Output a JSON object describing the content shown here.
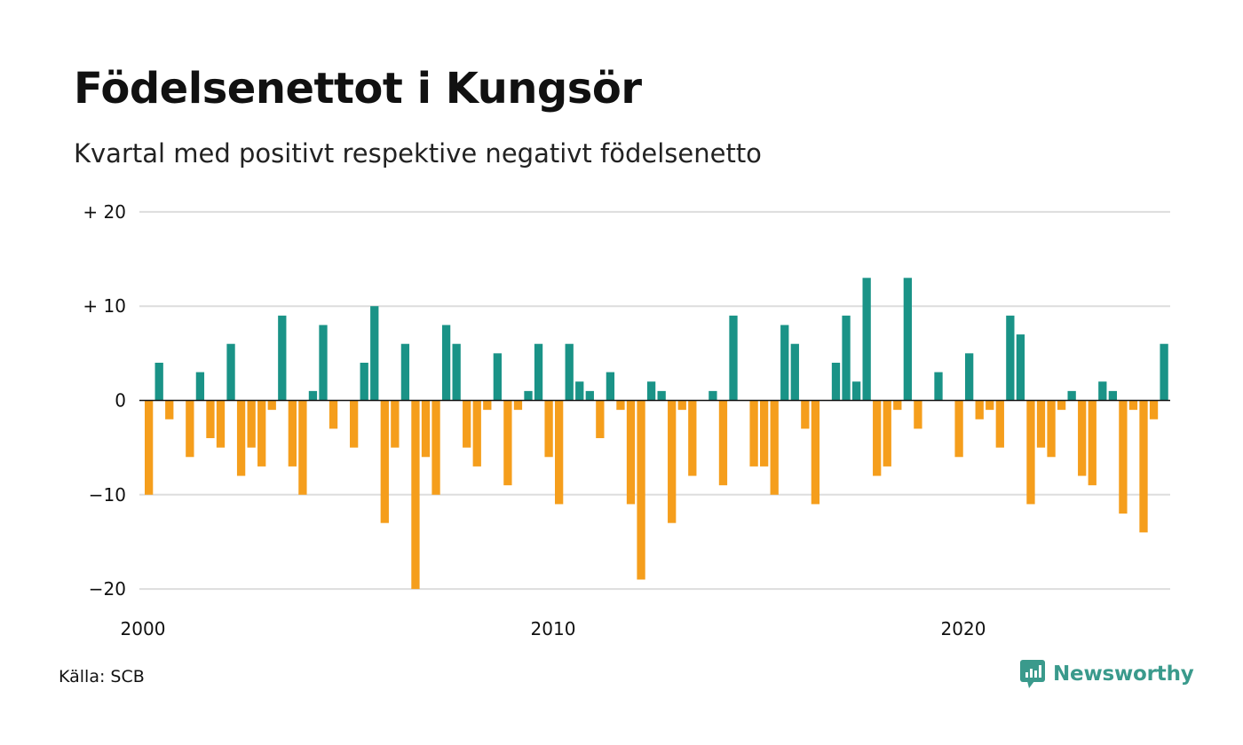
{
  "title": "Födelsenettot i Kungsör",
  "subtitle": "Kvartal med positivt respektive negativt födelsenetto",
  "source": "Källa: SCB",
  "brand": {
    "name": "Newsworthy",
    "icon": "bar-chart-speech-bubble-icon"
  },
  "colors": {
    "positive": "#1a9387",
    "negative": "#f59e1c",
    "grid": "#dddddd",
    "zero_line": "#111111"
  },
  "chart_data": {
    "type": "bar",
    "x_start": "2000 Q1",
    "x_step": "quarter",
    "ylim": [
      -20,
      20
    ],
    "ytick_values": [
      20,
      10,
      0,
      -10,
      -20
    ],
    "ytick_labels": [
      "+ 20",
      "+ 10",
      "0",
      "−10",
      "−20"
    ],
    "xtick_labels": [
      "2000",
      "2010",
      "2020"
    ],
    "xtick_years": [
      2000,
      2010,
      2020
    ],
    "grid": true,
    "values": [
      -10,
      4,
      -2,
      0,
      -6,
      3,
      -4,
      -5,
      6,
      -8,
      -5,
      -7,
      -1,
      9,
      -7,
      -10,
      1,
      8,
      -3,
      0,
      -5,
      4,
      10,
      -13,
      -5,
      6,
      -20,
      -6,
      -10,
      8,
      6,
      -5,
      -7,
      -1,
      5,
      -9,
      -1,
      1,
      6,
      -6,
      -11,
      6,
      2,
      1,
      -4,
      3,
      -1,
      -11,
      -19,
      2,
      1,
      -13,
      -1,
      -8,
      0,
      1,
      -9,
      9,
      0,
      -7,
      -7,
      -10,
      8,
      6,
      -3,
      -11,
      0,
      4,
      9,
      2,
      13,
      -8,
      -7,
      -1,
      13,
      -3,
      0,
      3,
      0,
      -6,
      5,
      -2,
      -1,
      -5,
      9,
      7,
      -11,
      -5,
      -6,
      -1,
      1,
      -8,
      -9,
      2,
      1,
      -12,
      -1,
      -14,
      -2,
      6
    ]
  }
}
